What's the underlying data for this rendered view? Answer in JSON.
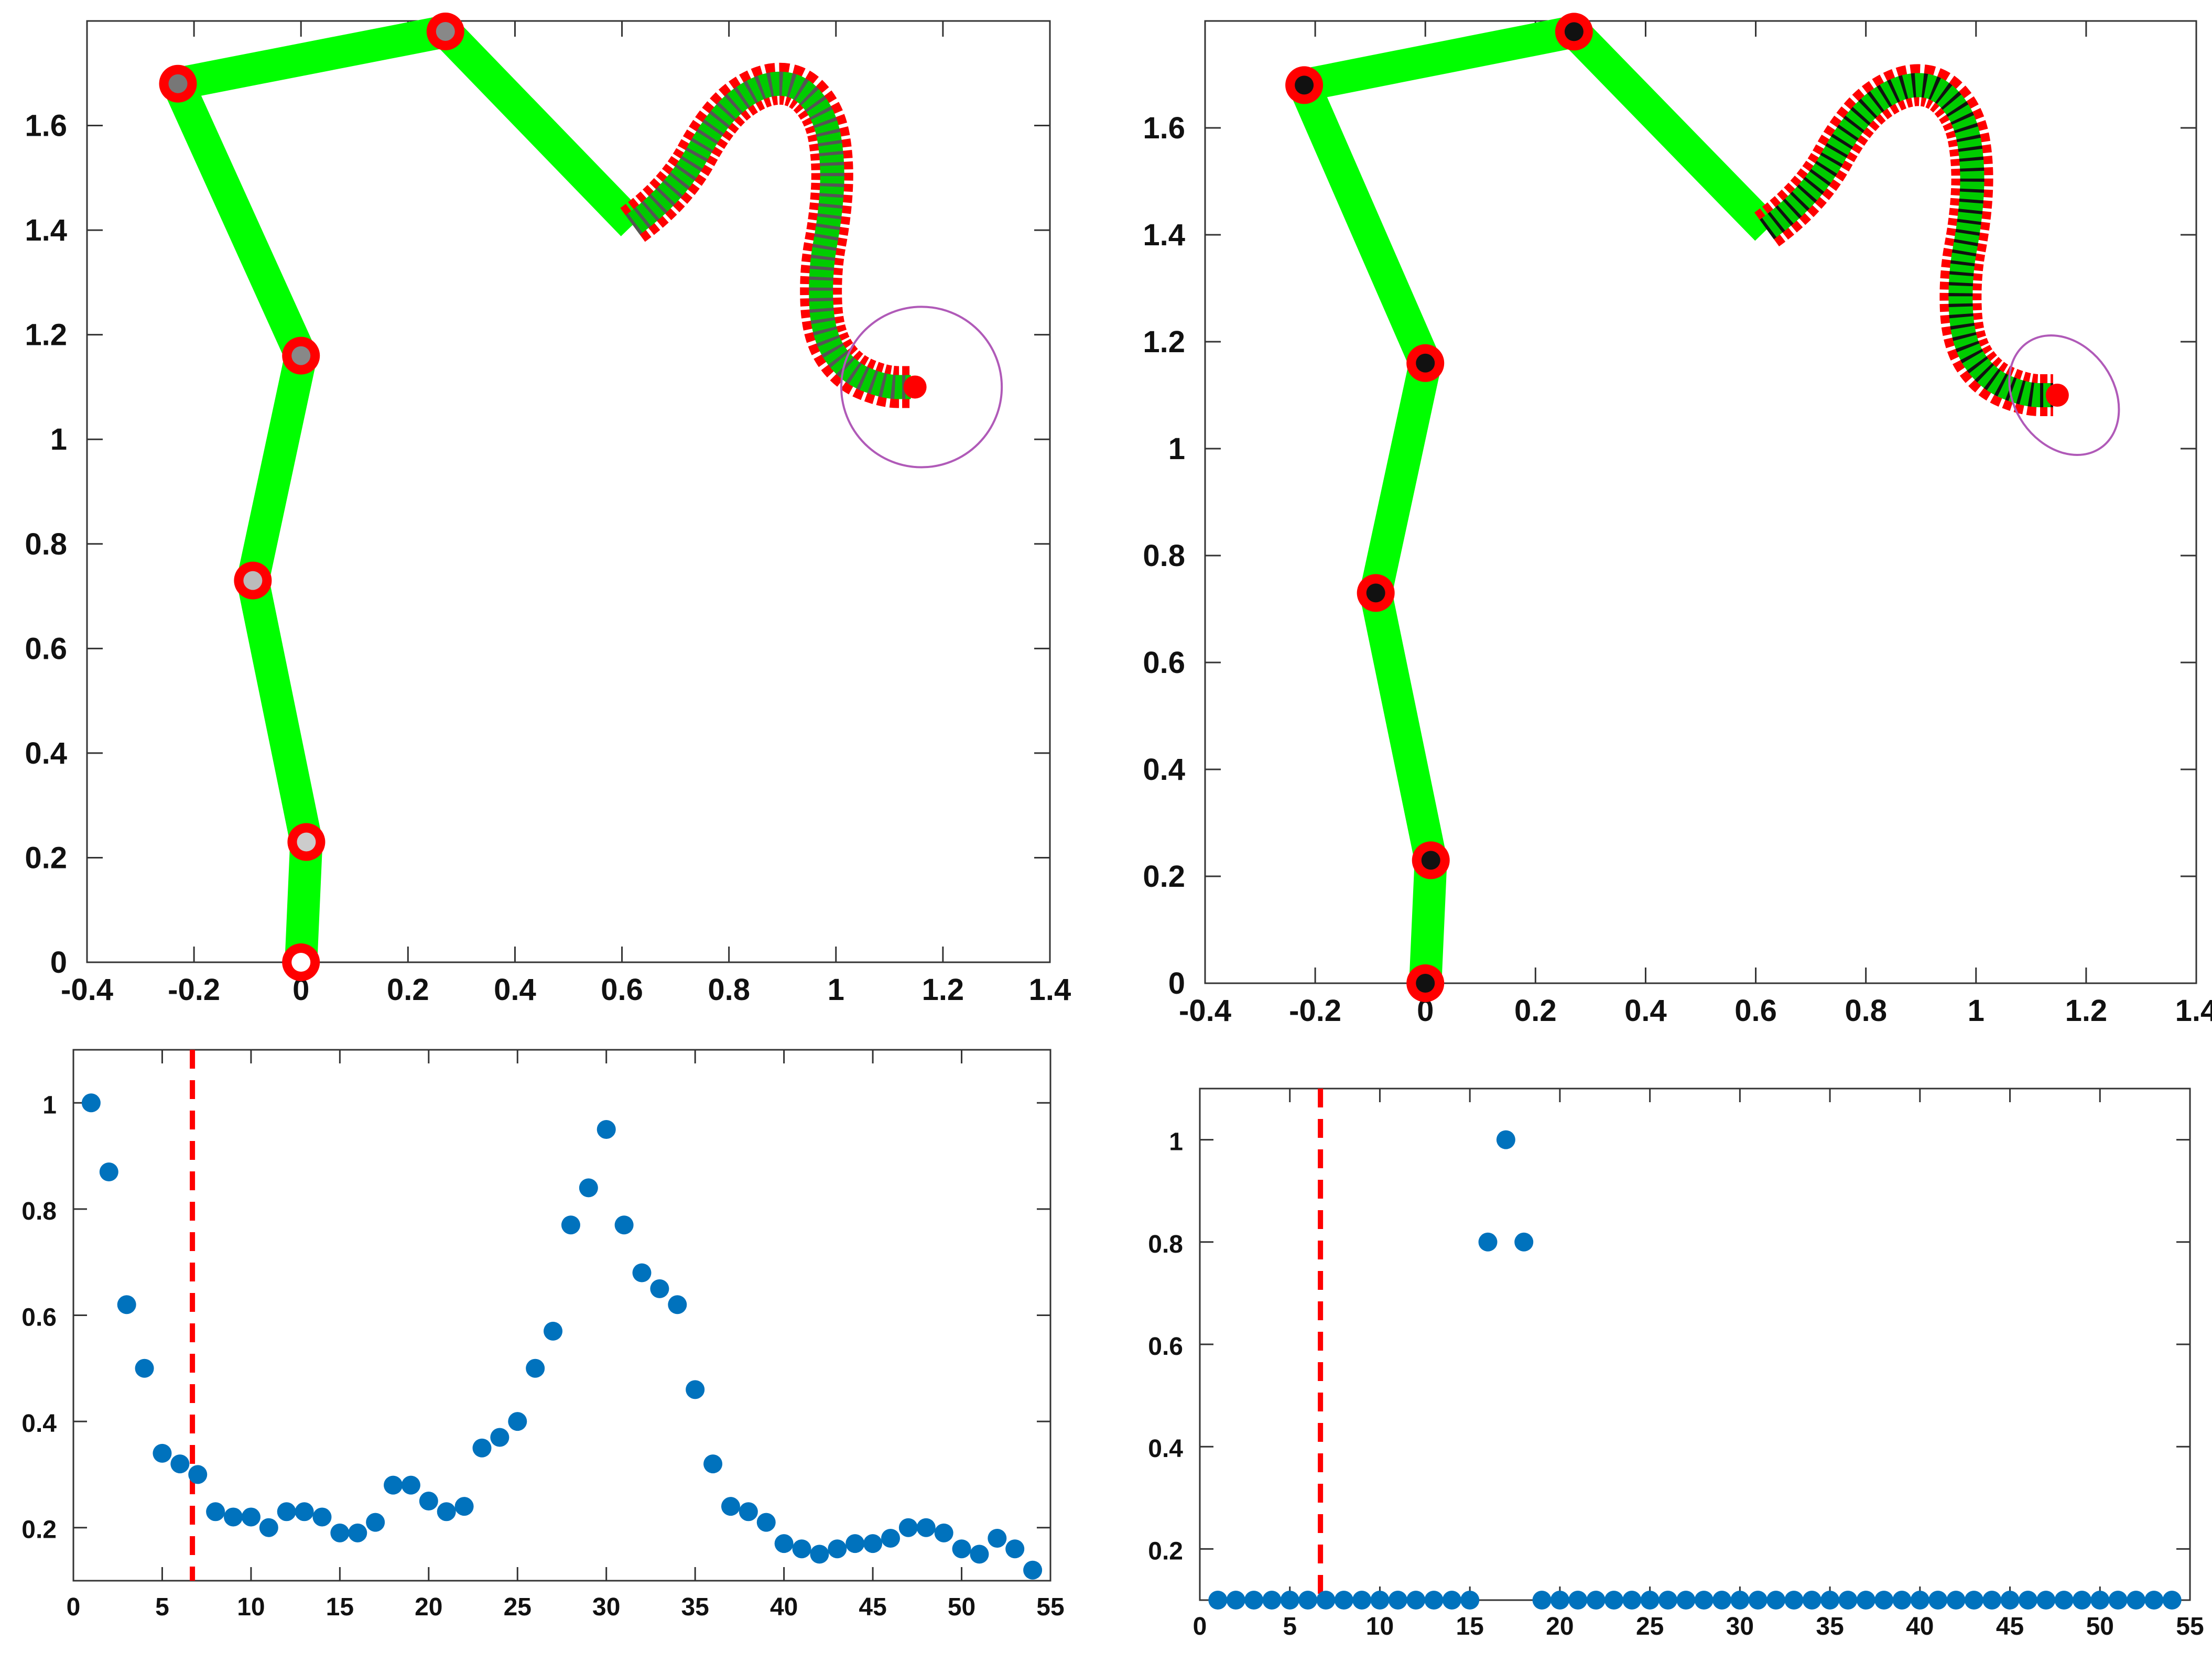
{
  "chart_data": [
    {
      "type": "line",
      "panel": "top-left",
      "description_series": [
        {
          "role": "link-chain",
          "color": "#00ff00",
          "x": [
            0.0,
            0.01,
            -0.09,
            0.0,
            -0.23,
            0.27,
            0.62
          ],
          "y": [
            0.0,
            0.23,
            0.73,
            1.16,
            1.68,
            1.78,
            1.41
          ]
        },
        {
          "role": "continuum-section",
          "color": "#ff0000",
          "style": "dashed outline, green/grey hatched core",
          "x": [
            0.62,
            0.7,
            0.78,
            0.86,
            0.93,
            0.98,
            0.995,
            0.99,
            0.97,
            0.975,
            1.02,
            1.09,
            1.14
          ],
          "y": [
            1.41,
            1.47,
            1.62,
            1.68,
            1.68,
            1.62,
            1.53,
            1.43,
            1.32,
            1.2,
            1.13,
            1.1,
            1.1
          ]
        },
        {
          "role": "target-circle",
          "color": "#b05ab8",
          "center": [
            1.16,
            1.1
          ],
          "radius": 0.15
        }
      ],
      "joints": {
        "x": [
          0.0,
          0.01,
          -0.09,
          0.0,
          -0.23,
          0.27
        ],
        "y": [
          0.0,
          0.23,
          0.73,
          1.16,
          1.68,
          1.78
        ],
        "fill": [
          "#ffffff",
          "#cccccc",
          "#bbbbbb",
          "#888888",
          "#777777",
          "#888888"
        ],
        "ring": "#ff0000"
      },
      "xlim": [
        -0.4,
        1.4
      ],
      "ylim": [
        0,
        1.8
      ],
      "xticks": [
        "-0.4",
        "-0.2",
        "0",
        "0.2",
        "0.4",
        "0.6",
        "0.8",
        "1",
        "1.2",
        "1.4"
      ],
      "yticks": [
        "0",
        "0.2",
        "0.4",
        "0.6",
        "0.8",
        "1",
        "1.2",
        "1.4",
        "1.6"
      ],
      "grid": false
    },
    {
      "type": "line",
      "panel": "top-right",
      "description_series": [
        {
          "role": "link-chain",
          "color": "#00ff00",
          "x": [
            0.0,
            0.01,
            -0.09,
            0.0,
            -0.22,
            0.27,
            0.62
          ],
          "y": [
            0.0,
            0.23,
            0.73,
            1.16,
            1.68,
            1.78,
            1.41
          ]
        },
        {
          "role": "continuum-section",
          "color": "#ff0000",
          "style": "dashed outline, green/black hatched core",
          "x": [
            0.62,
            0.7,
            0.78,
            0.86,
            0.93,
            0.98,
            0.995,
            0.99,
            0.97,
            0.975,
            1.02,
            1.09,
            1.14
          ],
          "y": [
            1.41,
            1.47,
            1.62,
            1.68,
            1.68,
            1.62,
            1.53,
            1.43,
            1.32,
            1.2,
            1.13,
            1.1,
            1.1
          ]
        },
        {
          "role": "target-ellipse",
          "color": "#b05ab8",
          "center": [
            1.16,
            1.1
          ],
          "rx": 0.09,
          "ry": 0.12,
          "rotation_deg": -35
        }
      ],
      "joints": {
        "x": [
          0.0,
          0.01,
          -0.09,
          0.0,
          -0.22,
          0.27
        ],
        "y": [
          0.0,
          0.23,
          0.73,
          1.16,
          1.68,
          1.78
        ],
        "fill": [
          "#111111",
          "#111111",
          "#111111",
          "#111111",
          "#111111",
          "#111111"
        ],
        "ring": "#ff0000"
      },
      "xlim": [
        -0.4,
        1.4
      ],
      "ylim": [
        0,
        1.8
      ],
      "xticks": [
        "-0.4",
        "-0.2",
        "0",
        "0.2",
        "0.4",
        "0.6",
        "0.8",
        "1",
        "1.2",
        "1.4"
      ],
      "yticks": [
        "0",
        "0.2",
        "0.4",
        "0.6",
        "0.8",
        "1",
        "1.2",
        "1.4",
        "1.6"
      ],
      "grid": false
    },
    {
      "type": "scatter",
      "panel": "bottom-left",
      "x": [
        1,
        2,
        3,
        4,
        5,
        6,
        7,
        8,
        9,
        10,
        11,
        12,
        13,
        14,
        15,
        16,
        17,
        18,
        19,
        20,
        21,
        22,
        23,
        24,
        25,
        26,
        27,
        28,
        29,
        30,
        31,
        32,
        33,
        34,
        35,
        36,
        37,
        38,
        39,
        40,
        41,
        42,
        43,
        44,
        45,
        46,
        47,
        48,
        49,
        50,
        51,
        52,
        53,
        54
      ],
      "y": [
        1.0,
        0.87,
        0.62,
        0.5,
        0.34,
        0.32,
        0.3,
        0.23,
        0.22,
        0.22,
        0.2,
        0.23,
        0.23,
        0.22,
        0.19,
        0.19,
        0.21,
        0.28,
        0.28,
        0.25,
        0.23,
        0.24,
        0.35,
        0.37,
        0.4,
        0.5,
        0.57,
        0.77,
        0.84,
        0.95,
        0.77,
        0.68,
        0.65,
        0.62,
        0.46,
        0.32,
        0.24,
        0.23,
        0.21,
        0.17,
        0.16,
        0.15,
        0.16,
        0.17,
        0.17,
        0.18,
        0.2,
        0.2,
        0.19,
        0.16,
        0.15,
        0.18,
        0.16,
        0.12
      ],
      "marker_color": "#0072bd",
      "vline": {
        "x": 6.7,
        "color": "#ff0000",
        "style": "dashed"
      },
      "xlim": [
        0,
        55
      ],
      "ylim": [
        0.1,
        1.1
      ],
      "xticks": [
        "0",
        "5",
        "10",
        "15",
        "20",
        "25",
        "30",
        "35",
        "40",
        "45",
        "50",
        "55"
      ],
      "yticks": [
        "0.2",
        "0.4",
        "0.6",
        "0.8",
        "1"
      ],
      "grid": false
    },
    {
      "type": "scatter",
      "panel": "bottom-right",
      "x": [
        1,
        2,
        3,
        4,
        5,
        6,
        7,
        8,
        9,
        10,
        11,
        12,
        13,
        14,
        15,
        16,
        17,
        18,
        19,
        20,
        21,
        22,
        23,
        24,
        25,
        26,
        27,
        28,
        29,
        30,
        31,
        32,
        33,
        34,
        35,
        36,
        37,
        38,
        39,
        40,
        41,
        42,
        43,
        44,
        45,
        46,
        47,
        48,
        49,
        50,
        51,
        52,
        53,
        54
      ],
      "y": [
        0.1,
        0.1,
        0.1,
        0.1,
        0.1,
        0.1,
        0.1,
        0.1,
        0.1,
        0.1,
        0.1,
        0.1,
        0.1,
        0.1,
        0.1,
        0.8,
        1.0,
        0.8,
        0.1,
        0.1,
        0.1,
        0.1,
        0.1,
        0.1,
        0.1,
        0.1,
        0.1,
        0.1,
        0.1,
        0.1,
        0.1,
        0.1,
        0.1,
        0.1,
        0.1,
        0.1,
        0.1,
        0.1,
        0.1,
        0.1,
        0.1,
        0.1,
        0.1,
        0.1,
        0.1,
        0.1,
        0.1,
        0.1,
        0.1,
        0.1,
        0.1,
        0.1,
        0.1,
        0.1
      ],
      "marker_color": "#0072bd",
      "vline": {
        "x": 6.7,
        "color": "#ff0000",
        "style": "dashed"
      },
      "xlim": [
        0,
        55
      ],
      "ylim": [
        0.1,
        1.1
      ],
      "xticks": [
        "0",
        "5",
        "10",
        "15",
        "20",
        "25",
        "30",
        "35",
        "40",
        "45",
        "50",
        "55"
      ],
      "yticks": [
        "0.2",
        "0.4",
        "0.6",
        "0.8",
        "1"
      ],
      "grid": false
    }
  ]
}
